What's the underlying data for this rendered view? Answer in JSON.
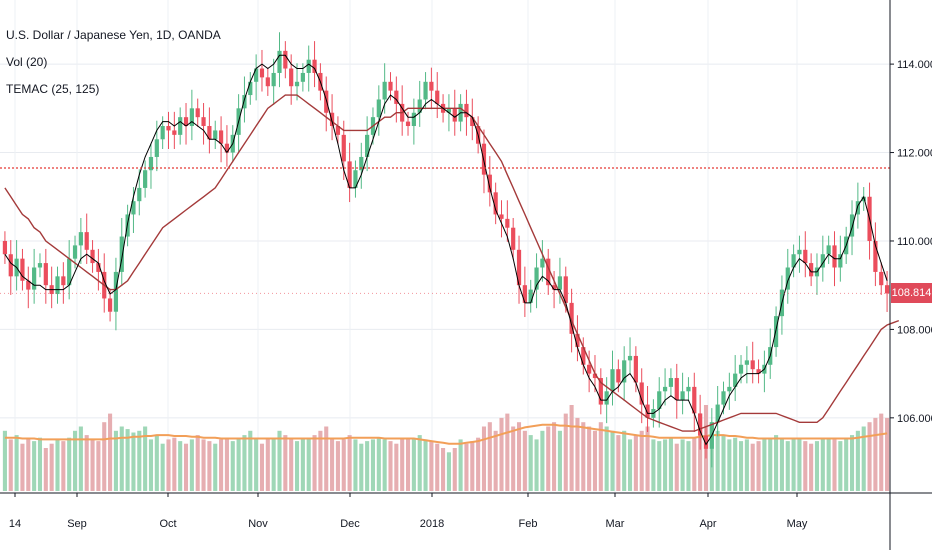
{
  "chart_data": {
    "type": "candlestick",
    "legend": [
      "U.S. Dollar / Japanese Yen, 1D, OANDA",
      "Vol (20)",
      "TEMAC (25, 125)"
    ],
    "x_ticks": [
      "14",
      "Sep",
      "Oct",
      "Nov",
      "Dec",
      "2018",
      "Feb",
      "Mar",
      "Apr",
      "May"
    ],
    "y_ticks": [
      "114.000",
      "112.000",
      "110.000",
      "108.000",
      "106.000"
    ],
    "ylim": [
      104.3,
      115.45
    ],
    "last_price": "108.814",
    "horizontal_level": 111.65,
    "colors": {
      "up": "#53b987",
      "down": "#eb4d5c",
      "fast_ma": "#000000",
      "slow_ma": "#a43a3a",
      "vol_ma": "#f29f58",
      "vol_up": "#9fd7b7",
      "vol_down": "#e6aeb1",
      "level": "#e53935"
    },
    "closes": [
      109.7,
      109.2,
      109.6,
      109.1,
      108.9,
      109.4,
      109.5,
      109.0,
      108.8,
      109.2,
      109.0,
      109.6,
      109.9,
      110.2,
      109.8,
      109.5,
      109.3,
      108.7,
      108.4,
      109.3,
      110.1,
      110.6,
      110.9,
      111.2,
      111.6,
      111.9,
      112.3,
      112.6,
      112.5,
      112.4,
      112.8,
      112.6,
      113.0,
      112.8,
      112.6,
      112.3,
      112.5,
      112.2,
      112.0,
      112.4,
      113.0,
      113.3,
      113.6,
      113.9,
      113.7,
      113.5,
      113.8,
      114.3,
      113.9,
      113.5,
      113.6,
      113.8,
      114.1,
      113.8,
      113.4,
      112.9,
      112.6,
      112.4,
      111.8,
      111.2,
      111.6,
      111.9,
      112.4,
      112.8,
      113.2,
      113.6,
      113.4,
      113.1,
      112.7,
      112.6,
      112.9,
      113.2,
      113.6,
      113.4,
      113.1,
      112.9,
      113.0,
      112.7,
      113.1,
      112.8,
      112.6,
      112.2,
      111.5,
      111.1,
      110.6,
      110.5,
      110.3,
      109.8,
      109.0,
      108.6,
      108.9,
      109.4,
      109.6,
      109.0,
      108.9,
      109.2,
      108.6,
      107.9,
      107.6,
      107.2,
      107.0,
      106.9,
      106.3,
      106.6,
      107.1,
      106.8,
      107.3,
      107.4,
      106.8,
      106.3,
      106.0,
      106.2,
      106.6,
      106.7,
      106.9,
      106.4,
      106.6,
      106.7,
      106.1,
      105.6,
      105.3,
      105.9,
      106.3,
      106.6,
      106.7,
      107.0,
      107.2,
      107.3,
      107.1,
      107.0,
      107.2,
      107.6,
      108.3,
      108.9,
      109.4,
      109.7,
      109.8,
      109.5,
      109.2,
      109.4,
      109.7,
      109.9,
      109.4,
      109.7,
      110.1,
      110.6,
      110.9,
      111.0,
      110.0,
      109.3,
      109.0,
      108.814
    ],
    "volume": [
      0.7,
      0.6,
      0.65,
      0.55,
      0.6,
      0.58,
      0.62,
      0.5,
      0.55,
      0.6,
      0.58,
      0.62,
      0.7,
      0.75,
      0.65,
      0.6,
      0.58,
      0.8,
      0.9,
      0.7,
      0.75,
      0.72,
      0.68,
      0.7,
      0.75,
      0.6,
      0.65,
      0.55,
      0.6,
      0.62,
      0.58,
      0.55,
      0.6,
      0.65,
      0.6,
      0.58,
      0.55,
      0.6,
      0.62,
      0.58,
      0.6,
      0.65,
      0.7,
      0.6,
      0.55,
      0.62,
      0.6,
      0.7,
      0.65,
      0.6,
      0.58,
      0.62,
      0.6,
      0.65,
      0.7,
      0.75,
      0.6,
      0.58,
      0.6,
      0.65,
      0.6,
      0.55,
      0.58,
      0.6,
      0.62,
      0.6,
      0.58,
      0.55,
      0.6,
      0.62,
      0.6,
      0.65,
      0.6,
      0.58,
      0.55,
      0.5,
      0.45,
      0.5,
      0.6,
      0.55,
      0.58,
      0.62,
      0.75,
      0.8,
      0.7,
      0.85,
      0.9,
      0.75,
      0.8,
      0.7,
      0.65,
      0.6,
      0.7,
      0.75,
      0.8,
      0.7,
      0.9,
      1.0,
      0.85,
      0.8,
      0.75,
      0.7,
      0.8,
      0.75,
      0.7,
      0.65,
      0.7,
      0.6,
      0.65,
      0.7,
      0.75,
      0.6,
      0.58,
      0.6,
      0.62,
      0.55,
      0.6,
      0.58,
      0.62,
      0.9,
      1.0,
      0.8,
      0.7,
      0.65,
      0.6,
      0.62,
      0.58,
      0.6,
      0.55,
      0.58,
      0.6,
      0.62,
      0.65,
      0.6,
      0.58,
      0.62,
      0.6,
      0.58,
      0.55,
      0.58,
      0.6,
      0.62,
      0.6,
      0.58,
      0.62,
      0.65,
      0.7,
      0.75,
      0.8,
      0.85,
      0.9,
      0.85
    ],
    "volume_ma": [
      0.62,
      0.62,
      0.62,
      0.61,
      0.61,
      0.61,
      0.6,
      0.6,
      0.6,
      0.6,
      0.6,
      0.6,
      0.6,
      0.6,
      0.6,
      0.6,
      0.6,
      0.6,
      0.61,
      0.61,
      0.62,
      0.62,
      0.63,
      0.63,
      0.64,
      0.64,
      0.65,
      0.65,
      0.65,
      0.64,
      0.64,
      0.64,
      0.63,
      0.63,
      0.62,
      0.62,
      0.62,
      0.61,
      0.61,
      0.61,
      0.61,
      0.61,
      0.61,
      0.61,
      0.61,
      0.61,
      0.61,
      0.61,
      0.61,
      0.61,
      0.61,
      0.61,
      0.61,
      0.61,
      0.61,
      0.61,
      0.61,
      0.61,
      0.61,
      0.62,
      0.62,
      0.62,
      0.62,
      0.62,
      0.62,
      0.61,
      0.61,
      0.61,
      0.61,
      0.61,
      0.61,
      0.6,
      0.59,
      0.58,
      0.57,
      0.56,
      0.55,
      0.55,
      0.55,
      0.56,
      0.57,
      0.58,
      0.6,
      0.62,
      0.64,
      0.66,
      0.68,
      0.7,
      0.72,
      0.74,
      0.75,
      0.76,
      0.77,
      0.77,
      0.77,
      0.76,
      0.76,
      0.75,
      0.75,
      0.74,
      0.73,
      0.72,
      0.71,
      0.7,
      0.69,
      0.68,
      0.67,
      0.66,
      0.65,
      0.64,
      0.64,
      0.63,
      0.62,
      0.62,
      0.62,
      0.62,
      0.62,
      0.62,
      0.62,
      0.63,
      0.64,
      0.65,
      0.65,
      0.65,
      0.64,
      0.64,
      0.63,
      0.62,
      0.62,
      0.61,
      0.61,
      0.61,
      0.61,
      0.61,
      0.61,
      0.61,
      0.61,
      0.61,
      0.61,
      0.61,
      0.61,
      0.61,
      0.61,
      0.61,
      0.61,
      0.61,
      0.62,
      0.63,
      0.64,
      0.65,
      0.66,
      0.67
    ],
    "fast_ma": [
      109.7,
      109.5,
      109.4,
      109.2,
      109.1,
      109.0,
      109.0,
      108.9,
      108.9,
      108.9,
      108.9,
      109.0,
      109.3,
      109.6,
      109.7,
      109.6,
      109.5,
      109.1,
      108.8,
      108.9,
      109.6,
      110.4,
      111.0,
      111.5,
      111.9,
      112.2,
      112.5,
      112.7,
      112.7,
      112.6,
      112.7,
      112.6,
      112.7,
      112.6,
      112.5,
      112.3,
      112.3,
      112.2,
      112.0,
      112.2,
      112.7,
      113.2,
      113.6,
      113.9,
      114.0,
      113.9,
      114.0,
      114.2,
      114.2,
      114.0,
      113.9,
      113.9,
      114.0,
      113.9,
      113.6,
      113.2,
      112.7,
      112.2,
      111.6,
      111.2,
      111.2,
      111.5,
      111.9,
      112.3,
      112.7,
      113.1,
      113.3,
      113.2,
      113.0,
      112.8,
      112.8,
      112.9,
      113.1,
      113.2,
      113.1,
      113.0,
      112.9,
      112.8,
      112.9,
      112.9,
      112.8,
      112.4,
      111.8,
      111.2,
      110.7,
      110.4,
      110.1,
      109.6,
      109.0,
      108.6,
      108.6,
      109.0,
      109.2,
      109.1,
      108.9,
      108.9,
      108.6,
      108.1,
      107.6,
      107.2,
      106.9,
      106.7,
      106.4,
      106.4,
      106.6,
      106.7,
      106.9,
      107.0,
      106.8,
      106.4,
      106.1,
      106.1,
      106.2,
      106.4,
      106.5,
      106.4,
      106.4,
      106.4,
      106.1,
      105.7,
      105.4,
      105.6,
      105.9,
      106.2,
      106.5,
      106.7,
      106.9,
      107.0,
      107.0,
      107.0,
      107.1,
      107.4,
      108.0,
      108.6,
      109.1,
      109.4,
      109.6,
      109.5,
      109.3,
      109.3,
      109.5,
      109.7,
      109.6,
      109.6,
      109.9,
      110.3,
      110.8,
      111.0,
      110.5,
      109.9,
      109.5,
      109.1
    ],
    "slow_ma": [
      111.2,
      111.0,
      110.8,
      110.6,
      110.5,
      110.3,
      110.2,
      110.0,
      109.9,
      109.8,
      109.7,
      109.6,
      109.5,
      109.4,
      109.3,
      109.2,
      109.1,
      109.0,
      108.9,
      108.9,
      109.0,
      109.1,
      109.3,
      109.5,
      109.7,
      109.9,
      110.1,
      110.3,
      110.4,
      110.5,
      110.6,
      110.7,
      110.8,
      110.9,
      111.0,
      111.1,
      111.2,
      111.4,
      111.6,
      111.8,
      112.0,
      112.2,
      112.4,
      112.6,
      112.8,
      113.0,
      113.1,
      113.2,
      113.3,
      113.3,
      113.3,
      113.2,
      113.1,
      113.0,
      112.9,
      112.8,
      112.7,
      112.6,
      112.5,
      112.5,
      112.5,
      112.5,
      112.5,
      112.6,
      112.7,
      112.8,
      112.8,
      112.9,
      112.9,
      113.0,
      113.0,
      113.0,
      113.0,
      113.0,
      113.0,
      113.0,
      113.0,
      113.0,
      113.0,
      112.9,
      112.8,
      112.6,
      112.4,
      112.2,
      112.0,
      111.8,
      111.5,
      111.2,
      110.9,
      110.6,
      110.3,
      110.0,
      109.7,
      109.4,
      109.1,
      108.8,
      108.5,
      108.2,
      107.9,
      107.6,
      107.3,
      107.0,
      106.8,
      106.7,
      106.6,
      106.5,
      106.4,
      106.3,
      106.2,
      106.1,
      106.0,
      105.95,
      105.9,
      105.85,
      105.8,
      105.75,
      105.7,
      105.7,
      105.7,
      105.75,
      105.8,
      105.85,
      105.9,
      105.95,
      106.0,
      106.05,
      106.1,
      106.1,
      106.1,
      106.1,
      106.1,
      106.1,
      106.1,
      106.05,
      106.0,
      105.95,
      105.9,
      105.9,
      105.9,
      105.9,
      106.0,
      106.2,
      106.4,
      106.6,
      106.8,
      107.0,
      107.2,
      107.4,
      107.6,
      107.8,
      108.0,
      108.1,
      108.15,
      108.2
    ]
  }
}
